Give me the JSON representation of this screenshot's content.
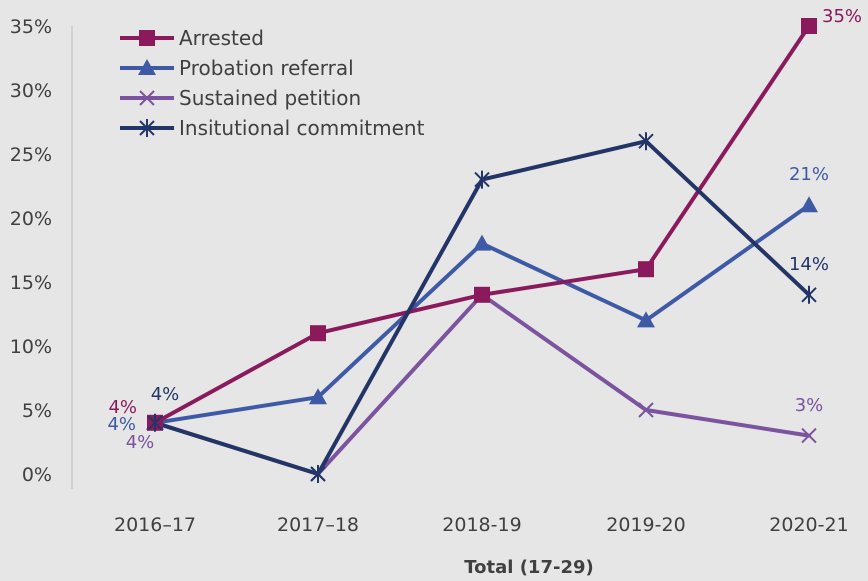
{
  "chart_data": {
    "type": "line",
    "title": "",
    "xlabel": "Total (17-29)",
    "ylabel": "",
    "categories": [
      "2016–17",
      "2017–18",
      "2018-19",
      "2019-20",
      "2020-21"
    ],
    "ylim": [
      0,
      35
    ],
    "yticks": [
      "0%",
      "5%",
      "10%",
      "15%",
      "20%",
      "25%",
      "30%",
      "35%"
    ],
    "grid": false,
    "legend_position": "top-left",
    "series": [
      {
        "name": "Arrested",
        "values": [
          4,
          11,
          14,
          16,
          35
        ],
        "color": "#8b1a5c",
        "marker": "square",
        "data_labels": [
          {
            "index": 0,
            "text": "4%"
          },
          {
            "index": 4,
            "text": "35%"
          }
        ]
      },
      {
        "name": "Probation referral",
        "values": [
          4,
          6,
          18,
          12,
          21
        ],
        "color": "#3e5aa6",
        "marker": "triangle",
        "data_labels": [
          {
            "index": 0,
            "text": "4%"
          },
          {
            "index": 4,
            "text": "21%"
          }
        ]
      },
      {
        "name": "Sustained petition",
        "values": [
          4,
          0,
          14,
          5,
          3
        ],
        "color": "#7b539e",
        "marker": "x",
        "data_labels": [
          {
            "index": 0,
            "text": "4%"
          },
          {
            "index": 4,
            "text": "3%"
          }
        ]
      },
      {
        "name": "Insitutional commitment",
        "values": [
          4,
          0,
          23,
          26,
          14
        ],
        "color": "#233567",
        "marker": "star",
        "data_labels": [
          {
            "index": 0,
            "text": "4%"
          },
          {
            "index": 4,
            "text": "14%"
          }
        ]
      }
    ]
  }
}
